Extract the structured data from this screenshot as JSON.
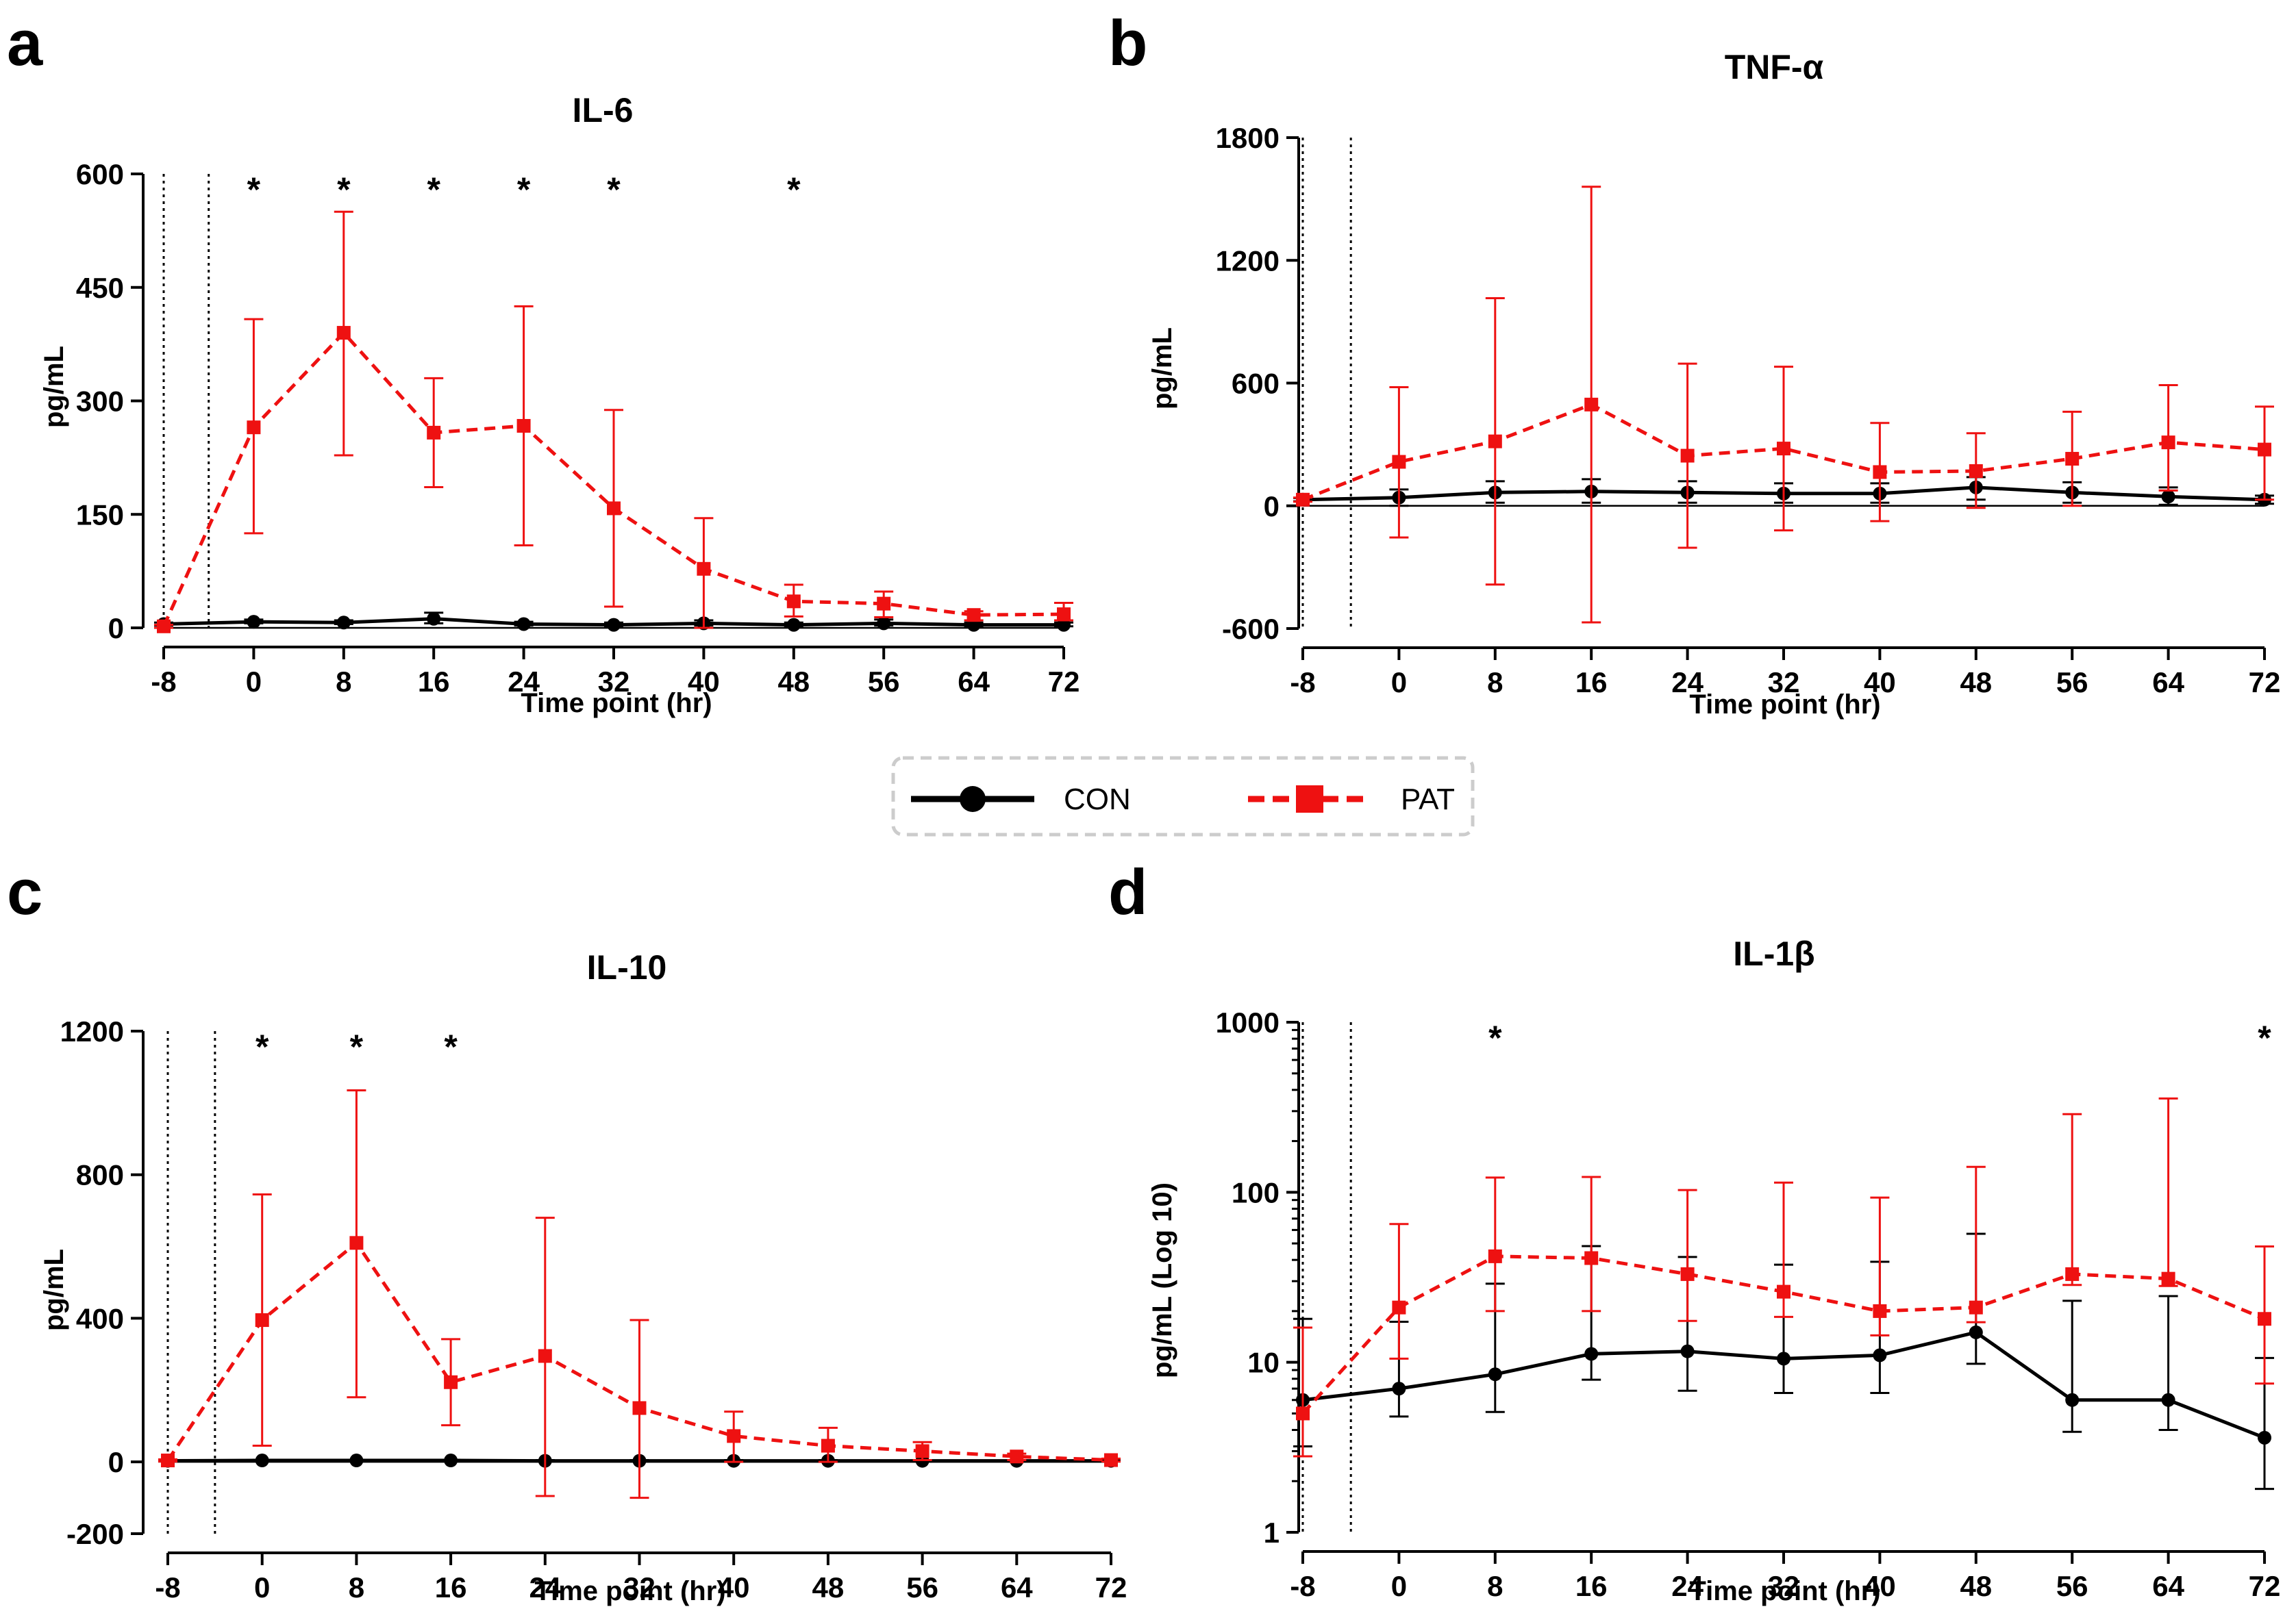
{
  "legend": {
    "entries": [
      {
        "name": "CON",
        "color": "#000000",
        "marker": "circle",
        "line": "solid"
      },
      {
        "name": "PAT",
        "color": "#ee1111",
        "marker": "square",
        "line": "dashed"
      }
    ]
  },
  "chart_data": [
    {
      "panel": "a",
      "type": "line",
      "title": "IL-6",
      "xlabel": "Time point (hr)",
      "ylabel": "pg/mL",
      "scale": "linear",
      "x": [
        -8,
        0,
        8,
        16,
        24,
        32,
        40,
        48,
        56,
        64,
        72
      ],
      "xticks": [
        "-8",
        "0",
        "8",
        "16",
        "24",
        "32",
        "40",
        "48",
        "56",
        "64",
        "72"
      ],
      "ylim": [
        0,
        600
      ],
      "yticks": [
        0,
        150,
        300,
        450,
        600
      ],
      "ytick_labels": [
        "0",
        "150",
        "300",
        "450",
        "600"
      ],
      "ref_lines_x": [
        -8,
        -4
      ],
      "significance_x": [
        0,
        8,
        16,
        24,
        32,
        48
      ],
      "significance_label": "*",
      "series": [
        {
          "name": "CON",
          "values": [
            5,
            8,
            7,
            12,
            5,
            4,
            6,
            4,
            6,
            4,
            4
          ],
          "err_low": [
            2,
            2,
            2,
            6,
            2,
            2,
            3,
            2,
            3,
            2,
            2
          ],
          "err_high": [
            2,
            3,
            3,
            8,
            3,
            3,
            4,
            3,
            5,
            3,
            3
          ]
        },
        {
          "name": "PAT",
          "values": [
            2,
            265,
            390,
            258,
            267,
            158,
            78,
            35,
            32,
            17,
            18
          ],
          "err_low": [
            2,
            140,
            162,
            72,
            158,
            130,
            78,
            20,
            18,
            7,
            8
          ],
          "err_high": [
            2,
            143,
            160,
            72,
            158,
            130,
            67,
            22,
            16,
            5,
            15
          ]
        }
      ]
    },
    {
      "panel": "b",
      "type": "line",
      "title": "TNF-α",
      "xlabel": "Time point (hr)",
      "ylabel": "pg/mL",
      "scale": "linear",
      "x": [
        -8,
        0,
        8,
        16,
        24,
        32,
        40,
        48,
        56,
        64,
        72
      ],
      "xticks": [
        "-8",
        "0",
        "8",
        "16",
        "24",
        "32",
        "40",
        "48",
        "56",
        "64",
        "72"
      ],
      "ylim": [
        -600,
        1800
      ],
      "yticks": [
        -600,
        0,
        600,
        1200,
        1800
      ],
      "ytick_labels": [
        "-600",
        "0",
        "600",
        "1200",
        "1800"
      ],
      "ref_lines_x": [
        -8,
        -4
      ],
      "significance_x": [],
      "significance_label": "*",
      "series": [
        {
          "name": "CON",
          "values": [
            30,
            40,
            65,
            70,
            65,
            60,
            60,
            90,
            65,
            45,
            30
          ],
          "err_low": [
            8,
            40,
            50,
            55,
            50,
            45,
            45,
            60,
            50,
            40,
            20
          ],
          "err_high": [
            8,
            40,
            55,
            60,
            55,
            50,
            50,
            50,
            50,
            45,
            20
          ]
        },
        {
          "name": "PAT",
          "values": [
            30,
            215,
            315,
            495,
            245,
            280,
            165,
            170,
            230,
            310,
            275
          ],
          "err_low": [
            10,
            370,
            700,
            1065,
            450,
            400,
            240,
            180,
            230,
            235,
            245
          ],
          "err_high": [
            10,
            365,
            700,
            1065,
            450,
            400,
            240,
            185,
            230,
            280,
            210
          ]
        }
      ]
    },
    {
      "panel": "c",
      "type": "line",
      "title": "IL-10",
      "xlabel": "Time point (hr)",
      "ylabel": "pg/mL",
      "scale": "linear",
      "x": [
        -8,
        0,
        8,
        16,
        24,
        32,
        40,
        48,
        56,
        64,
        72
      ],
      "xticks": [
        "-8",
        "0",
        "8",
        "16",
        "24",
        "32",
        "40",
        "48",
        "56",
        "64",
        "72"
      ],
      "ylim": [
        -200,
        1200
      ],
      "yticks": [
        -200,
        0,
        400,
        800,
        1200
      ],
      "ytick_labels": [
        "-200",
        "0",
        "400",
        "800",
        "1200"
      ],
      "ref_lines_x": [
        -8,
        -4
      ],
      "significance_x": [
        0,
        8,
        16
      ],
      "significance_label": "*",
      "series": [
        {
          "name": "CON",
          "values": [
            3,
            4,
            4,
            4,
            3,
            3,
            3,
            3,
            3,
            3,
            3
          ],
          "err_low": [
            2,
            2,
            2,
            2,
            2,
            2,
            2,
            2,
            2,
            2,
            2
          ],
          "err_high": [
            2,
            2,
            2,
            2,
            2,
            2,
            2,
            2,
            2,
            2,
            2
          ]
        },
        {
          "name": "PAT",
          "values": [
            4,
            395,
            610,
            222,
            295,
            150,
            72,
            45,
            30,
            15,
            5
          ],
          "err_low": [
            3,
            350,
            430,
            120,
            390,
            250,
            72,
            45,
            25,
            10,
            4
          ],
          "err_high": [
            3,
            350,
            425,
            120,
            385,
            245,
            68,
            50,
            25,
            8,
            4
          ]
        }
      ]
    },
    {
      "panel": "d",
      "type": "line",
      "title": "IL-1β",
      "xlabel": "Time point (hr)",
      "ylabel": "pg/mL (Log 10)",
      "scale": "log10",
      "x": [
        -8,
        0,
        8,
        16,
        24,
        32,
        40,
        48,
        56,
        64,
        72
      ],
      "xticks": [
        "-8",
        "0",
        "8",
        "16",
        "24",
        "32",
        "40",
        "48",
        "56",
        "64",
        "72"
      ],
      "ylim": [
        1,
        1000
      ],
      "yticks": [
        1,
        10,
        100,
        1000
      ],
      "ytick_labels": [
        "1",
        "10",
        "100",
        "1000"
      ],
      "ref_lines_x": [
        -8,
        -4
      ],
      "significance_x": [
        8,
        72
      ],
      "significance_label": "*",
      "series": [
        {
          "name": "CON",
          "values": [
            6,
            7,
            8.5,
            11.2,
            11.6,
            10.5,
            11,
            15,
            6,
            6,
            3.6
          ],
          "err_low": [
            2.8,
            2.2,
            3.4,
            3.3,
            4.8,
            3.9,
            4.4,
            5.2,
            2.1,
            2,
            1.8
          ],
          "err_high": [
            12,
            10.3,
            20.5,
            37,
            30,
            27,
            28,
            42,
            17,
            18.5,
            7
          ]
        },
        {
          "name": "PAT",
          "values": [
            5,
            21,
            42,
            41,
            33,
            26,
            20,
            21,
            33,
            31,
            18
          ],
          "err_low": [
            2.2,
            10.5,
            22,
            21,
            15.5,
            7.5,
            5.6,
            3.8,
            4.5,
            2.9,
            10.5
          ],
          "err_high": [
            11,
            44,
            80,
            82,
            70,
            88,
            73,
            120,
            255,
            325,
            30
          ]
        }
      ]
    }
  ]
}
